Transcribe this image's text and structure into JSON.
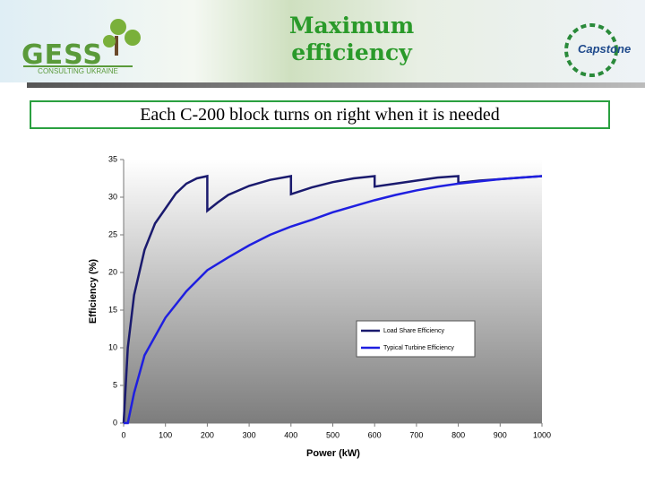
{
  "header": {
    "logo_left": "GESS",
    "logo_left_sub": "CONSULTING UKRAINE",
    "title": "Maximum efficiency",
    "logo_right": "Capstone"
  },
  "subtitle": "Each C-200 block turns on right when it is needed",
  "chart_data": {
    "type": "line",
    "x_label": "Power (kW)",
    "y_label": "Efficiency (%)",
    "xlim": [
      0,
      1000
    ],
    "xticks": [
      0,
      100,
      200,
      300,
      400,
      500,
      600,
      700,
      800,
      900,
      1000
    ],
    "ylim": [
      0,
      35
    ],
    "yticks": [
      0,
      5,
      10,
      15,
      20,
      25,
      30,
      35
    ],
    "legend": "right",
    "series": [
      {
        "name": "Load Share Efficiency",
        "color": "#1a1a6e",
        "x": [
          0,
          10,
          25,
          50,
          75,
          100,
          125,
          150,
          175,
          200,
          200,
          225,
          250,
          300,
          350,
          400,
          400,
          450,
          500,
          550,
          600,
          600,
          650,
          700,
          750,
          800,
          800,
          850,
          900,
          950,
          1000
        ],
        "values": [
          0,
          10,
          17,
          23,
          26.5,
          28.5,
          30.5,
          31.8,
          32.5,
          32.8,
          28.2,
          29.3,
          30.3,
          31.5,
          32.3,
          32.8,
          30.4,
          31.3,
          32,
          32.5,
          32.8,
          31.4,
          31.8,
          32.2,
          32.6,
          32.8,
          31.9,
          32.2,
          32.4,
          32.6,
          32.8
        ]
      },
      {
        "name": "Typical Turbine Efficiency",
        "color": "#1f1fe0",
        "x": [
          0,
          10,
          25,
          50,
          100,
          150,
          200,
          250,
          300,
          350,
          400,
          450,
          500,
          550,
          600,
          650,
          700,
          750,
          800,
          850,
          900,
          950,
          1000
        ],
        "values": [
          0,
          0,
          4,
          9,
          14,
          17.5,
          20.3,
          22,
          23.6,
          25,
          26.1,
          27,
          28,
          28.8,
          29.6,
          30.3,
          30.9,
          31.4,
          31.8,
          32.1,
          32.4,
          32.6,
          32.8
        ]
      }
    ]
  }
}
